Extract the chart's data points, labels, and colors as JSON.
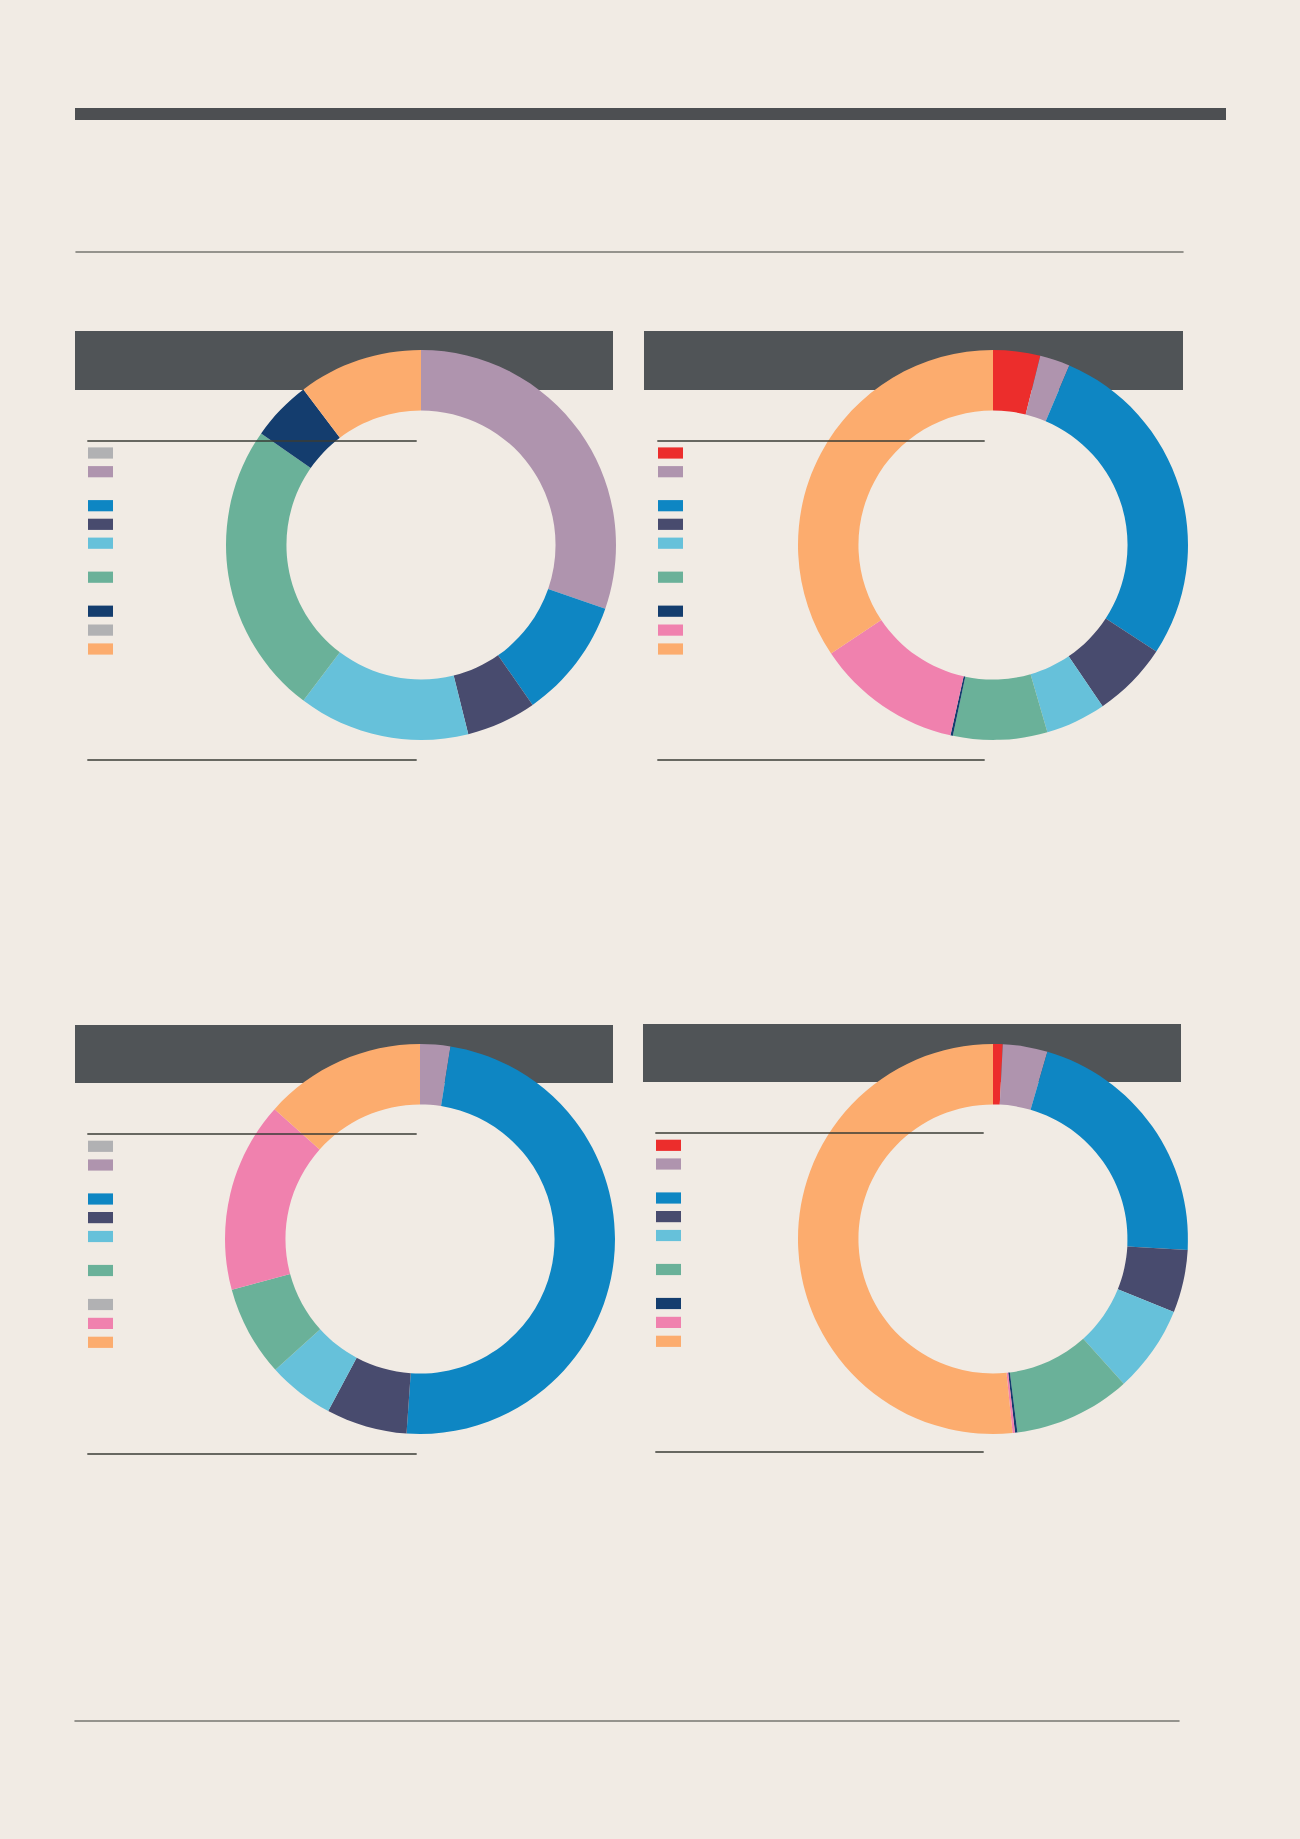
{
  "chart_data": [
    {
      "type": "donut",
      "categories": [
        null,
        null,
        null,
        null,
        null,
        null,
        null
      ],
      "values": [
        30.3,
        10.0,
        5.8,
        14.2,
        24.4,
        5.0,
        10.3
      ],
      "colors": [
        "#af94ae",
        "#0e86c3",
        "#484b6e",
        "#66c1da",
        "#6ab199",
        "#143d6e",
        "#fcac6e"
      ]
    },
    {
      "type": "donut",
      "categories": [
        null,
        null,
        null,
        null,
        null,
        null,
        null,
        null,
        null
      ],
      "values": [
        3.9,
        2.5,
        27.8,
        6.3,
        5.0,
        7.8,
        0.2,
        12.1,
        34.4
      ],
      "colors": [
        "#ec2d2c",
        "#af94ae",
        "#0e86c3",
        "#484b6e",
        "#66c1da",
        "#6ab199",
        "#143d6e",
        "#f081ae",
        "#fcac6e"
      ]
    },
    {
      "type": "donut",
      "categories": [
        null,
        null,
        null,
        null,
        null,
        null,
        null
      ],
      "values": [
        2.5,
        48.6,
        6.7,
        5.5,
        7.5,
        15.8,
        13.4
      ],
      "colors": [
        "#af94ae",
        "#0e86c3",
        "#484b6e",
        "#66c1da",
        "#6ab199",
        "#f081ae",
        "#fcac6e"
      ]
    },
    {
      "type": "donut",
      "categories": [
        null,
        null,
        null,
        null,
        null,
        null,
        null,
        null,
        null
      ],
      "values": [
        0.8,
        3.7,
        21.4,
        5.2,
        7.2,
        9.7,
        0.2,
        0.2,
        51.6
      ],
      "colors": [
        "#ec2d2c",
        "#af94ae",
        "#0e86c3",
        "#484b6e",
        "#66c1da",
        "#6ab199",
        "#143d6e",
        "#f081ae",
        "#fcac6e"
      ]
    }
  ]
}
